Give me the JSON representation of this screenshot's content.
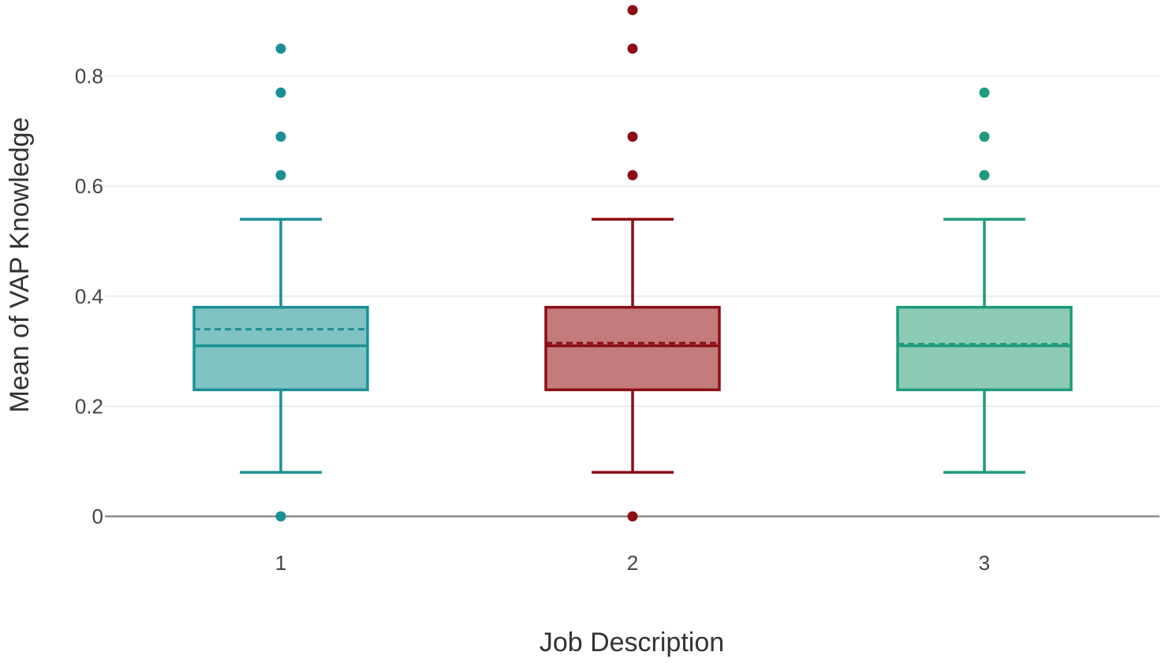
{
  "chart_data": {
    "type": "box",
    "xlabel": "Job Description",
    "ylabel": "Mean of VAP Knowledge",
    "ylim": [
      0,
      0.92
    ],
    "yticks": [
      0,
      0.2,
      0.4,
      0.6,
      0.8
    ],
    "ytick_labels": [
      "0",
      "0.2",
      "0.4",
      "0.6",
      "0.8"
    ],
    "categories": [
      "1",
      "2",
      "3"
    ],
    "grid": true,
    "series": [
      {
        "category": "1",
        "color": "#1a8f95",
        "fill": "#7fc3c4",
        "whisker_low": 0.08,
        "q1": 0.23,
        "median": 0.31,
        "q3": 0.38,
        "whisker_high": 0.54,
        "mean": 0.34,
        "outliers": [
          0,
          0.62,
          0.69,
          0.77,
          0.85
        ]
      },
      {
        "category": "2",
        "color": "#8b0e14",
        "fill": "#c47b7b",
        "whisker_low": 0.08,
        "q1": 0.23,
        "median": 0.31,
        "q3": 0.38,
        "whisker_high": 0.54,
        "mean": 0.315,
        "outliers": [
          0,
          0.62,
          0.69,
          0.85,
          0.92
        ]
      },
      {
        "category": "3",
        "color": "#1e9a7c",
        "fill": "#8bcab4",
        "whisker_low": 0.08,
        "q1": 0.23,
        "median": 0.31,
        "q3": 0.38,
        "whisker_high": 0.54,
        "mean": 0.313,
        "outliers": [
          0.62,
          0.69,
          0.77
        ]
      }
    ]
  }
}
